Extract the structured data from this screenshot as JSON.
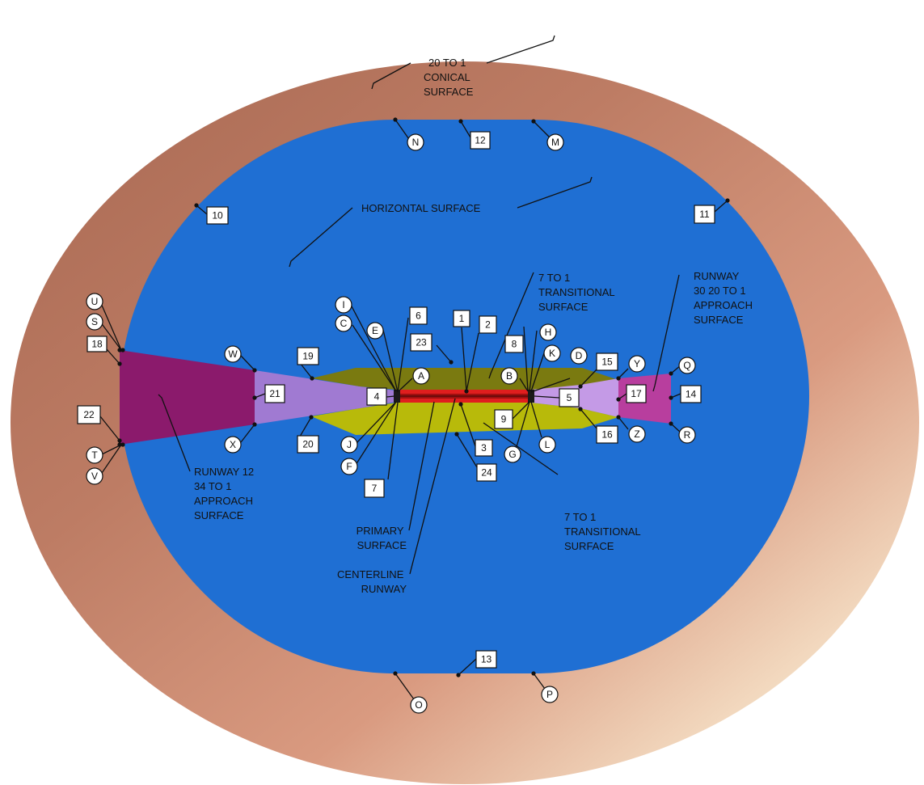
{
  "surfaces": {
    "conical": {
      "label": [
        "20 TO 1",
        "CONICAL",
        "SURFACE"
      ],
      "color": "#b87060"
    },
    "horizontal": {
      "label": "HORIZONTAL SURFACE",
      "color": "#1f6fd3"
    },
    "transitional_top": {
      "label": [
        "7 TO 1",
        "TRANSITIONAL",
        "SURFACE"
      ],
      "color": "#7a7a10"
    },
    "transitional_bottom": {
      "label": [
        "7 TO 1",
        "TRANSITIONAL",
        "SURFACE"
      ],
      "color": "#b8ba0a"
    },
    "approach_12": {
      "label": [
        "RUNWAY 12",
        "34 TO 1",
        "APPROACH",
        "SURFACE"
      ],
      "color": "#8b1a6c"
    },
    "approach_30": {
      "label": [
        "RUNWAY",
        "30 20 TO 1",
        "APPROACH",
        "SURFACE"
      ],
      "color": "#b83e9e"
    },
    "approach_inner": {
      "color": "#a47fd6"
    },
    "primary": {
      "label": [
        "PRIMARY",
        "SURFACE"
      ],
      "color": "#e01e1e"
    },
    "centerline": {
      "label": [
        "CENTERLINE",
        "RUNWAY"
      ],
      "color": "#5a0a0a"
    }
  },
  "box_tags": [
    "1",
    "2",
    "3",
    "4",
    "5",
    "6",
    "7",
    "8",
    "9",
    "10",
    "11",
    "12",
    "13",
    "14",
    "15",
    "16",
    "17",
    "18",
    "19",
    "20",
    "21",
    "22",
    "23",
    "24"
  ],
  "circle_tags": [
    "A",
    "B",
    "C",
    "D",
    "E",
    "F",
    "G",
    "H",
    "I",
    "J",
    "K",
    "L",
    "M",
    "N",
    "O",
    "P",
    "Q",
    "R",
    "S",
    "T",
    "U",
    "V",
    "W",
    "X",
    "Y",
    "Z"
  ]
}
